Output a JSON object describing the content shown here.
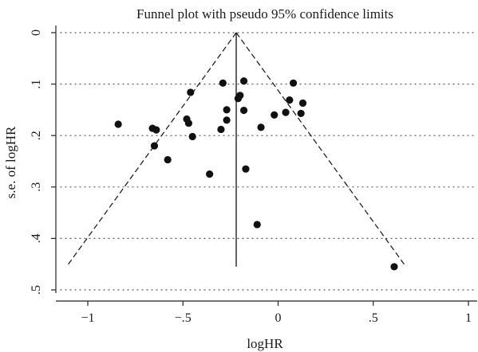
{
  "chart_data": {
    "type": "scatter",
    "title": "Funnel plot with pseudo 95% confidence limits",
    "xlabel": "logHR",
    "ylabel": "s.e. of logHR",
    "xlim": [
      -1.1,
      1.1
    ],
    "ylim": [
      0,
      0.5
    ],
    "y_reversed": true,
    "xticks": [
      -1,
      -0.5,
      0,
      0.5,
      1
    ],
    "xtick_labels": [
      "−1",
      "−.5",
      "0",
      ".5",
      "1"
    ],
    "yticks": [
      0,
      0.1,
      0.2,
      0.3,
      0.4,
      0.5
    ],
    "ytick_labels": [
      "0",
      ".1",
      ".2",
      ".3",
      ".4",
      ".5"
    ],
    "grid": "horizontal-dotted",
    "pooled_estimate": -0.22,
    "pseudo_ci_se_max": 0.455,
    "points": [
      {
        "x": -0.84,
        "y": 0.178
      },
      {
        "x": -0.66,
        "y": 0.186
      },
      {
        "x": -0.64,
        "y": 0.189
      },
      {
        "x": -0.65,
        "y": 0.22
      },
      {
        "x": -0.58,
        "y": 0.247
      },
      {
        "x": -0.48,
        "y": 0.168
      },
      {
        "x": -0.47,
        "y": 0.176
      },
      {
        "x": -0.46,
        "y": 0.116
      },
      {
        "x": -0.45,
        "y": 0.202
      },
      {
        "x": -0.36,
        "y": 0.275
      },
      {
        "x": -0.3,
        "y": 0.188
      },
      {
        "x": -0.29,
        "y": 0.098
      },
      {
        "x": -0.27,
        "y": 0.15
      },
      {
        "x": -0.27,
        "y": 0.17
      },
      {
        "x": -0.21,
        "y": 0.128
      },
      {
        "x": -0.2,
        "y": 0.122
      },
      {
        "x": -0.18,
        "y": 0.094
      },
      {
        "x": -0.18,
        "y": 0.151
      },
      {
        "x": -0.17,
        "y": 0.265
      },
      {
        "x": -0.11,
        "y": 0.373
      },
      {
        "x": -0.09,
        "y": 0.184
      },
      {
        "x": -0.02,
        "y": 0.16
      },
      {
        "x": 0.04,
        "y": 0.155
      },
      {
        "x": 0.06,
        "y": 0.131
      },
      {
        "x": 0.08,
        "y": 0.098
      },
      {
        "x": 0.12,
        "y": 0.157
      },
      {
        "x": 0.13,
        "y": 0.137
      },
      {
        "x": 0.61,
        "y": 0.455
      }
    ]
  }
}
